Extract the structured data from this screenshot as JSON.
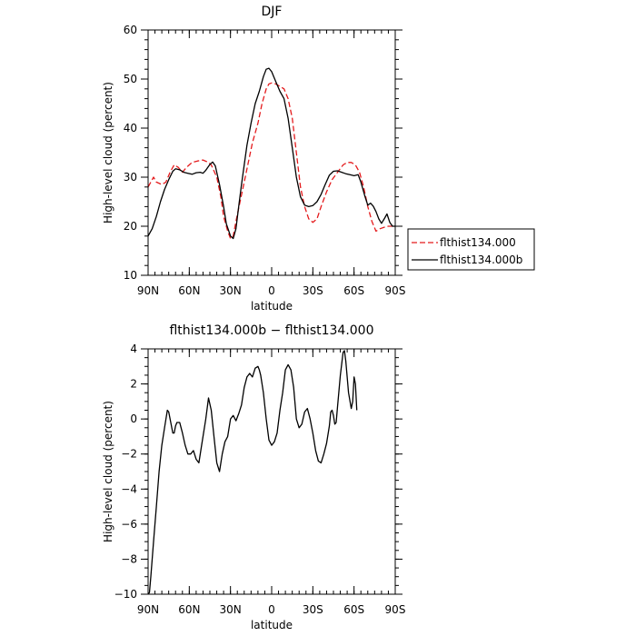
{
  "chart_data": [
    {
      "type": "line",
      "title": "DJF",
      "xlabel": "latitude",
      "ylabel": "High-level cloud (percent)",
      "xlim": [
        90,
        -90
      ],
      "ylim": [
        10,
        60
      ],
      "x_ticks": [
        90,
        60,
        30,
        0,
        -30,
        -60,
        -90
      ],
      "x_tick_labels": [
        "90N",
        "60N",
        "30N",
        "0",
        "30S",
        "60S",
        "90S"
      ],
      "y_ticks": [
        10,
        20,
        30,
        40,
        50,
        60
      ],
      "y_tick_labels": [
        "10",
        "20",
        "30",
        "40",
        "50",
        "60"
      ],
      "grid": false,
      "legend_position": "right",
      "series": [
        {
          "name": "flthist134.000",
          "color": "#e41a1c",
          "dash": "dashed",
          "points": [
            [
              90,
              28
            ],
            [
              88,
              29
            ],
            [
              86,
              30
            ],
            [
              84,
              29
            ],
            [
              80,
              28.5
            ],
            [
              77,
              29
            ],
            [
              74,
              31
            ],
            [
              71,
              32.5
            ],
            [
              68,
              32
            ],
            [
              65,
              31
            ],
            [
              62,
              32
            ],
            [
              58,
              33
            ],
            [
              54,
              33.3
            ],
            [
              50,
              33.5
            ],
            [
              46,
              33
            ],
            [
              44,
              32.5
            ],
            [
              40,
              30
            ],
            [
              37,
              26
            ],
            [
              35,
              22
            ],
            [
              32,
              19
            ],
            [
              30,
              17.5
            ],
            [
              28,
              18
            ],
            [
              26,
              21
            ],
            [
              23,
              25
            ],
            [
              20,
              29
            ],
            [
              17,
              33
            ],
            [
              14,
              37
            ],
            [
              10,
              41
            ],
            [
              7,
              45
            ],
            [
              4,
              48
            ],
            [
              2,
              49
            ],
            [
              0,
              49.2
            ],
            [
              -3,
              49
            ],
            [
              -6,
              48.5
            ],
            [
              -9,
              48
            ],
            [
              -12,
              46
            ],
            [
              -15,
              42
            ],
            [
              -18,
              35
            ],
            [
              -21,
              28
            ],
            [
              -24,
              24
            ],
            [
              -27,
              21.5
            ],
            [
              -30,
              20.8
            ],
            [
              -33,
              21.5
            ],
            [
              -36,
              24
            ],
            [
              -40,
              27
            ],
            [
              -44,
              29.5
            ],
            [
              -48,
              31
            ],
            [
              -52,
              32.5
            ],
            [
              -55,
              33
            ],
            [
              -58,
              33
            ],
            [
              -61,
              32.5
            ],
            [
              -64,
              31
            ],
            [
              -67,
              28
            ],
            [
              -70,
              24
            ],
            [
              -73,
              21
            ],
            [
              -76,
              19
            ],
            [
              -79,
              19.5
            ],
            [
              -82,
              19.8
            ],
            [
              -85,
              20
            ],
            [
              -90,
              20
            ]
          ]
        },
        {
          "name": "flthist134.000b",
          "color": "#000000",
          "dash": "solid",
          "points": [
            [
              90,
              18
            ],
            [
              87,
              19.5
            ],
            [
              84,
              22
            ],
            [
              81,
              25
            ],
            [
              78,
              27.5
            ],
            [
              75,
              29.5
            ],
            [
              72,
              31.2
            ],
            [
              70,
              31.7
            ],
            [
              67,
              31.5
            ],
            [
              64,
              31
            ],
            [
              61,
              30.8
            ],
            [
              58,
              30.6
            ],
            [
              55,
              30.9
            ],
            [
              52,
              31
            ],
            [
              50,
              30.8
            ],
            [
              48,
              31.4
            ],
            [
              45,
              32.6
            ],
            [
              43,
              33.1
            ],
            [
              41,
              32.3
            ],
            [
              38,
              28.5
            ],
            [
              35,
              24
            ],
            [
              33,
              20.5
            ],
            [
              30,
              18
            ],
            [
              28,
              17.5
            ],
            [
              26,
              19.5
            ],
            [
              24,
              24
            ],
            [
              22,
              28.5
            ],
            [
              20,
              32.5
            ],
            [
              18,
              36.5
            ],
            [
              15,
              41
            ],
            [
              12,
              45
            ],
            [
              9,
              47.5
            ],
            [
              6,
              50.5
            ],
            [
              4,
              52
            ],
            [
              2,
              52.2
            ],
            [
              0,
              51.5
            ],
            [
              -3,
              49.5
            ],
            [
              -6,
              47.5
            ],
            [
              -9,
              46
            ],
            [
              -12,
              42
            ],
            [
              -15,
              36
            ],
            [
              -18,
              30
            ],
            [
              -21,
              26
            ],
            [
              -24,
              24.3
            ],
            [
              -27,
              24
            ],
            [
              -30,
              24.2
            ],
            [
              -33,
              25
            ],
            [
              -36,
              26.5
            ],
            [
              -39,
              28.5
            ],
            [
              -42,
              30.4
            ],
            [
              -45,
              31.2
            ],
            [
              -48,
              31.3
            ],
            [
              -51,
              31
            ],
            [
              -54,
              30.7
            ],
            [
              -57,
              30.5
            ],
            [
              -60,
              30.3
            ],
            [
              -63,
              30.5
            ],
            [
              -65,
              29
            ],
            [
              -68,
              26
            ],
            [
              -70,
              24.3
            ],
            [
              -72,
              24.7
            ],
            [
              -74,
              24.1
            ],
            [
              -76,
              23
            ],
            [
              -78,
              21.5
            ],
            [
              -80,
              20.6
            ],
            [
              -82,
              21.5
            ],
            [
              -84,
              22.5
            ],
            [
              -86,
              20.8
            ],
            [
              -88,
              20
            ],
            [
              -90,
              20
            ]
          ]
        }
      ]
    },
    {
      "type": "line",
      "title": "flthist134.000b − flthist134.000",
      "xlabel": "latitude",
      "ylabel": "High-level cloud (percent)",
      "xlim": [
        90,
        -90
      ],
      "ylim": [
        -10,
        4
      ],
      "x_ticks": [
        90,
        60,
        30,
        0,
        -30,
        -60,
        -90
      ],
      "x_tick_labels": [
        "90N",
        "60N",
        "30N",
        "0",
        "30S",
        "60S",
        "90S"
      ],
      "y_ticks": [
        -10,
        -8,
        -6,
        -4,
        -2,
        0,
        2,
        4
      ],
      "y_tick_labels": [
        "−10",
        "−8",
        "−6",
        "−4",
        "−2",
        "0",
        "2",
        "4"
      ],
      "grid": false,
      "series": [
        {
          "color": "#000000",
          "dash": "solid",
          "points": [
            [
              90,
              -10
            ],
            [
              89,
              -9.9
            ],
            [
              88,
              -9
            ],
            [
              86,
              -7
            ],
            [
              84,
              -5
            ],
            [
              82,
              -3
            ],
            [
              80,
              -1.5
            ],
            [
              78,
              -0.5
            ],
            [
              76,
              0.5
            ],
            [
              75,
              0.4
            ],
            [
              74,
              0
            ],
            [
              73,
              -0.4
            ],
            [
              72,
              -0.8
            ],
            [
              71,
              -0.8
            ],
            [
              70,
              -0.4
            ],
            [
              69,
              -0.2
            ],
            [
              67,
              -0.2
            ],
            [
              66,
              -0.5
            ],
            [
              65,
              -0.8
            ],
            [
              63,
              -1.5
            ],
            [
              61,
              -2
            ],
            [
              59,
              -2
            ],
            [
              57,
              -1.8
            ],
            [
              55,
              -2.3
            ],
            [
              53,
              -2.5
            ],
            [
              51,
              -1.5
            ],
            [
              48,
              0
            ],
            [
              46,
              1.2
            ],
            [
              44,
              0.5
            ],
            [
              42,
              -1
            ],
            [
              40,
              -2.5
            ],
            [
              38,
              -3
            ],
            [
              36,
              -2
            ],
            [
              34,
              -1.3
            ],
            [
              32,
              -1
            ],
            [
              30,
              0
            ],
            [
              28,
              0.2
            ],
            [
              26,
              -0.1
            ],
            [
              24,
              0.3
            ],
            [
              22,
              0.8
            ],
            [
              20,
              1.8
            ],
            [
              18,
              2.4
            ],
            [
              16,
              2.6
            ],
            [
              14,
              2.4
            ],
            [
              12,
              2.9
            ],
            [
              10,
              3
            ],
            [
              9,
              2.8
            ],
            [
              8,
              2.5
            ],
            [
              6,
              1.5
            ],
            [
              4,
              0
            ],
            [
              2,
              -1.2
            ],
            [
              0,
              -1.5
            ],
            [
              -2,
              -1.3
            ],
            [
              -4,
              -0.8
            ],
            [
              -6,
              0.5
            ],
            [
              -8,
              1.5
            ],
            [
              -10,
              2.8
            ],
            [
              -12,
              3.1
            ],
            [
              -14,
              2.8
            ],
            [
              -16,
              1.8
            ],
            [
              -18,
              0
            ],
            [
              -20,
              -0.5
            ],
            [
              -22,
              -0.3
            ],
            [
              -24,
              0.4
            ],
            [
              -26,
              0.6
            ],
            [
              -28,
              0
            ],
            [
              -30,
              -0.8
            ],
            [
              -32,
              -1.8
            ],
            [
              -34,
              -2.4
            ],
            [
              -36,
              -2.5
            ],
            [
              -38,
              -2
            ],
            [
              -40,
              -1.4
            ],
            [
              -42,
              -0.4
            ],
            [
              -43,
              0.4
            ],
            [
              -44,
              0.5
            ],
            [
              -45,
              0.2
            ],
            [
              -46,
              -0.3
            ],
            [
              -47,
              -0.2
            ],
            [
              -48,
              0.7
            ],
            [
              -50,
              2.5
            ],
            [
              -52,
              3.8
            ],
            [
              -53,
              3.9
            ],
            [
              -54,
              3.3
            ],
            [
              -56,
              1.5
            ],
            [
              -58,
              0.6
            ],
            [
              -59,
              1
            ],
            [
              -60,
              2.4
            ],
            [
              -61,
              2
            ],
            [
              -62,
              0.5
            ]
          ]
        }
      ]
    }
  ]
}
